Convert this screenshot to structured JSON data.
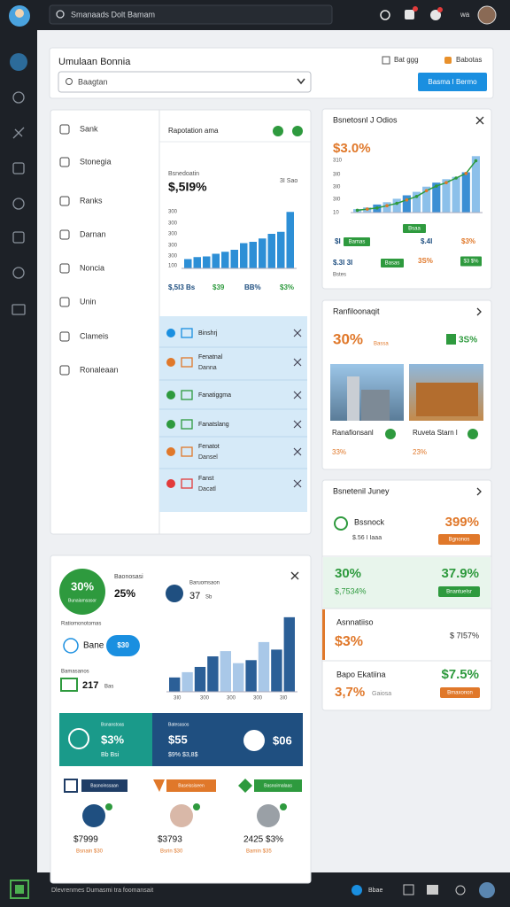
{
  "topbar": {
    "search": "Smanaads Dolt Bamam",
    "user": "wa"
  },
  "header": {
    "title": "Umulaan Bonnia",
    "select": "Baagtan",
    "link1": "Bat ggg",
    "link2": "Babotas",
    "button": "Basma I Bermo"
  },
  "nav": {
    "items": [
      "Sank",
      "Stonegia",
      "Ranks",
      "Darnan",
      "Noncia",
      "Unin",
      "Clameis",
      "Ronaleaan"
    ]
  },
  "overview": {
    "dropdown": "Rapotation ama",
    "label": "Bsnedoatin",
    "value": "$,5I9%",
    "side": "3I Sao",
    "axis_labels": [
      "300",
      "300",
      "300",
      "300",
      "300",
      "100"
    ],
    "ylim": [
      0,
      100
    ],
    "bars": [
      14,
      17,
      18,
      22,
      25,
      28,
      38,
      40,
      45,
      52,
      55,
      85
    ],
    "color": "#2d8fd6",
    "stats": [
      "$,5I3 Bs",
      "$39",
      "BB%",
      "$3%"
    ]
  },
  "notifications": [
    {
      "title": "Binshrj"
    },
    {
      "title": "Fenatnal",
      "subtitle": "Danna"
    },
    {
      "title": "Fanatiggma"
    },
    {
      "title": "Fanatslang"
    },
    {
      "title": "Fenatot",
      "subtitle": "Dansel"
    },
    {
      "title": "Fanst",
      "subtitle": "Dacatl"
    }
  ],
  "conversion": {
    "title": "Bsnetosnl J Odios",
    "value": "$3.0%",
    "axis_labels": [
      "310",
      "3I0",
      "3I0",
      "3I0",
      "10"
    ],
    "ylim": [
      0,
      100
    ],
    "bars": [
      6,
      9,
      14,
      18,
      24,
      30,
      36,
      45,
      52,
      58,
      62,
      70,
      98
    ],
    "trend": [
      4,
      6,
      8,
      12,
      16,
      22,
      28,
      38,
      46,
      52,
      60,
      68,
      90
    ],
    "bar_color": "#8cc0ea",
    "trend_color": "#2e9a3e",
    "stat1": "$I",
    "tag1": "Bamas",
    "tag2": "Bsaa",
    "stat2": "$.4I",
    "stat3": "$3%",
    "stat4": "$.3I 3I",
    "stat4_sub": "Bstes",
    "tag3": "Basas",
    "stat5": "3S%",
    "badge": "$3 $%"
  },
  "portfolio": {
    "title": "Ranfiloonaqit",
    "value": "30%",
    "value_sub": "Bassa",
    "badge": "3S%",
    "items": [
      {
        "caption": "Ranafionsanl",
        "value": "33%"
      },
      {
        "caption": "Ruveta Starn l",
        "value": "23%"
      }
    ]
  },
  "journey": {
    "title": "Bsnetenil Juney",
    "rows": [
      {
        "label": "Bssnock",
        "sub": "$.56 I Iaaa",
        "value": "399%",
        "button": "Bgnonos"
      },
      {
        "label": "30%",
        "sub": "$,7534%",
        "value": "37.9%",
        "button": "Bnantuelsr"
      },
      {
        "label": "Asnnatiiso",
        "sub": "$3%",
        "value": "$ 7I57%"
      },
      {
        "label": "Bapo Ekatiina",
        "sub": "3,7%",
        "note": "Gaiosa",
        "value": "$7.5%",
        "button": "Bmaxonon"
      }
    ]
  },
  "summary": {
    "circle_value": "30%",
    "circle_label": "Bunaiamsasor",
    "stat1_label": "Baonosasi",
    "stat1": "25%",
    "stat2_label": "Baruomsaon",
    "stat2": "37",
    "stat2_unit": "Sb",
    "section_label": "Ratiomonotomas",
    "row_label": "Bane",
    "pill": "$30",
    "count_label": "Bamasanos",
    "count": "217",
    "count_unit": "Bas",
    "ylim": [
      0,
      100
    ],
    "bars": [
      19,
      26,
      33,
      47,
      54,
      38,
      42,
      66,
      56,
      99
    ],
    "colors": [
      "#2b5f97",
      "#a9c8e8",
      "#2b5f97",
      "#2b5f97",
      "#a9c8e8",
      "#a9c8e8",
      "#2b5f97",
      "#a9c8e8",
      "#2b5f97",
      "#2b5f97"
    ],
    "x_labels": [
      "3I0",
      "300",
      "300",
      "300",
      "3I0"
    ],
    "banner_left": {
      "label": "Bsnanstoas",
      "value": "$3%",
      "sub": "Bb Bsi"
    },
    "banner_right": {
      "label": "Batesasos",
      "value": "$55",
      "sub": "$9% $3,8$",
      "extra": "$06"
    },
    "tags": [
      "Basnoinssaan",
      "Baseissiseen",
      "Basnoirnalaas"
    ],
    "totals": [
      {
        "value": "$7999",
        "sub": "Bsnain $30"
      },
      {
        "value": "$3793",
        "sub": "Bsrin $30"
      },
      {
        "value": "2425 $3%",
        "sub": "Bamin $35"
      }
    ]
  },
  "footer": {
    "text": "Dlevrenmes Dumasmi tra foomansait",
    "status": "Bbae"
  }
}
